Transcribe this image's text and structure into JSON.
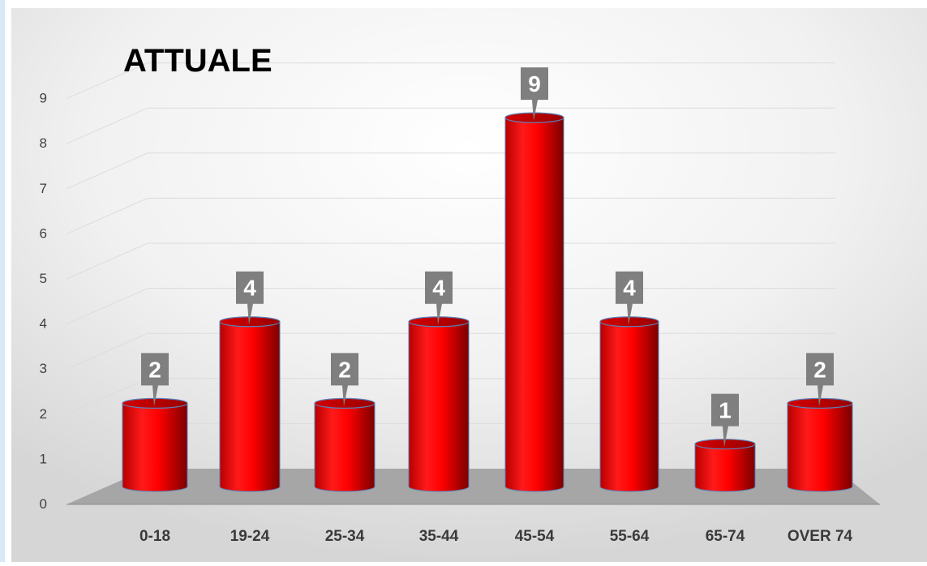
{
  "chart_data": {
    "type": "bar",
    "title": "ATTUALE",
    "categories": [
      "0-18",
      "19-24",
      "25-34",
      "35-44",
      "45-54",
      "55-64",
      "65-74",
      "OVER 74"
    ],
    "values": [
      2,
      4,
      2,
      4,
      9,
      4,
      1,
      2
    ],
    "data_labels": [
      "2",
      "4",
      "2",
      "4",
      "9",
      "4",
      "1",
      "2"
    ],
    "y_ticks": [
      "0",
      "1",
      "2",
      "3",
      "4",
      "5",
      "6",
      "7",
      "8",
      "9"
    ],
    "ylim": [
      0,
      9
    ],
    "grid": true,
    "legend": "none",
    "style": "3d-cylinder",
    "bar_color": "#ff0000",
    "label_color": "#7f7f7f",
    "floor_color": "#a6a6a6"
  }
}
